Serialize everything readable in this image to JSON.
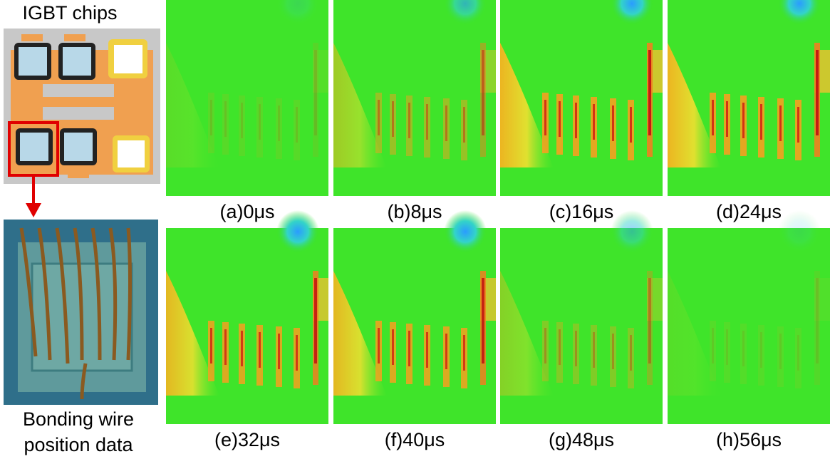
{
  "left": {
    "top_label": "IGBT chips",
    "bottom_label": [
      "Bonding wire",
      "position data"
    ]
  },
  "panels": [
    {
      "caption": "(a)0μs"
    },
    {
      "caption": "(b)8μs"
    },
    {
      "caption": "(c)16μs"
    },
    {
      "caption": "(d)24μs"
    },
    {
      "caption": "(e)32μs"
    },
    {
      "caption": "(f)40μs"
    },
    {
      "caption": "(g)48μs"
    },
    {
      "caption": "(h)56μs"
    }
  ]
}
